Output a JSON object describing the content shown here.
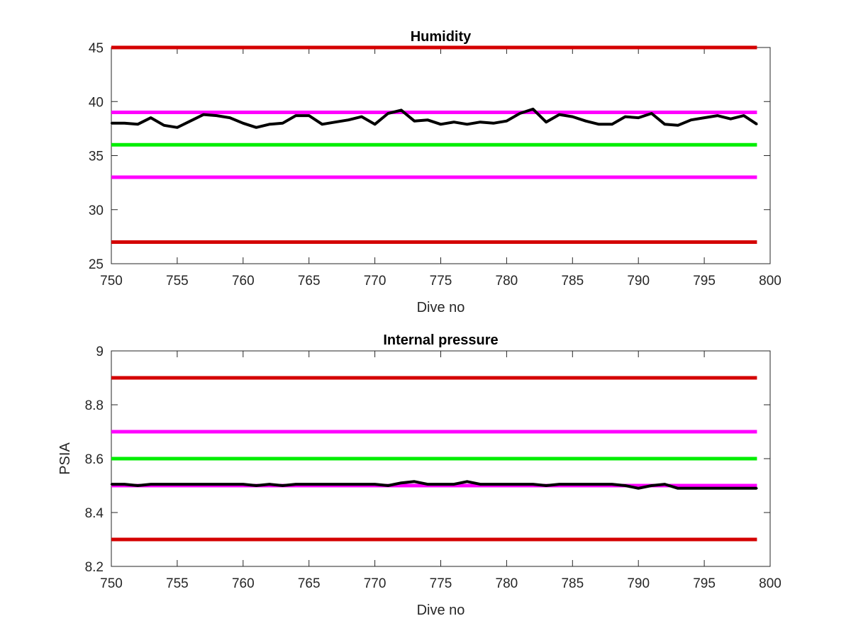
{
  "chart_data": [
    {
      "type": "line",
      "title": "Humidity",
      "xlabel": "Dive no",
      "ylabel": "",
      "xlim": [
        750,
        800
      ],
      "ylim": [
        25,
        45
      ],
      "xticks": [
        750,
        755,
        760,
        765,
        770,
        775,
        780,
        785,
        790,
        795,
        800
      ],
      "yticks": [
        25,
        30,
        35,
        40,
        45
      ],
      "grid": false,
      "limit_lines": [
        {
          "y": 45,
          "color": "#d40000",
          "x": [
            750,
            799
          ]
        },
        {
          "y": 39,
          "color": "#ff00ff",
          "x": [
            750,
            799
          ]
        },
        {
          "y": 36,
          "color": "#00ee00",
          "x": [
            750,
            799
          ]
        },
        {
          "y": 33,
          "color": "#ff00ff",
          "x": [
            750,
            799
          ]
        },
        {
          "y": 27,
          "color": "#d40000",
          "x": [
            750,
            799
          ]
        }
      ],
      "series": [
        {
          "color": "#000000",
          "x": [
            750,
            751,
            752,
            753,
            754,
            755,
            756,
            757,
            758,
            759,
            760,
            761,
            762,
            763,
            764,
            765,
            766,
            767,
            768,
            769,
            770,
            771,
            772,
            773,
            774,
            775,
            776,
            777,
            778,
            779,
            780,
            781,
            782,
            783,
            784,
            785,
            786,
            787,
            788,
            789,
            790,
            791,
            792,
            793,
            794,
            795,
            796,
            797,
            798,
            799
          ],
          "values": [
            38.0,
            38.0,
            37.9,
            38.5,
            37.8,
            37.6,
            38.2,
            38.8,
            38.7,
            38.5,
            38.0,
            37.6,
            37.9,
            38.0,
            38.7,
            38.7,
            37.9,
            38.1,
            38.3,
            38.6,
            37.9,
            38.9,
            39.2,
            38.2,
            38.3,
            37.9,
            38.1,
            37.9,
            38.1,
            38.0,
            38.2,
            38.9,
            39.3,
            38.1,
            38.8,
            38.6,
            38.2,
            37.9,
            37.9,
            38.6,
            38.5,
            38.9,
            37.9,
            37.8,
            38.3,
            38.5,
            38.7,
            38.4,
            38.7,
            37.9
          ]
        }
      ]
    },
    {
      "type": "line",
      "title": "Internal pressure",
      "xlabel": "Dive no",
      "ylabel": "PSIA",
      "xlim": [
        750,
        800
      ],
      "ylim": [
        8.2,
        9.0
      ],
      "xticks": [
        750,
        755,
        760,
        765,
        770,
        775,
        780,
        785,
        790,
        795,
        800
      ],
      "yticks": [
        8.2,
        8.4,
        8.6,
        8.8,
        9
      ],
      "ytick_labels": [
        "8.2",
        "8.4",
        "8.6",
        "8.8",
        "9"
      ],
      "grid": false,
      "limit_lines": [
        {
          "y": 8.9,
          "color": "#d40000",
          "x": [
            750,
            799
          ]
        },
        {
          "y": 8.7,
          "color": "#ff00ff",
          "x": [
            750,
            799
          ]
        },
        {
          "y": 8.6,
          "color": "#00ee00",
          "x": [
            750,
            799
          ]
        },
        {
          "y": 8.5,
          "color": "#ff00ff",
          "x": [
            750,
            799
          ]
        },
        {
          "y": 8.3,
          "color": "#d40000",
          "x": [
            750,
            799
          ]
        }
      ],
      "series": [
        {
          "color": "#000000",
          "x": [
            750,
            751,
            752,
            753,
            754,
            755,
            756,
            757,
            758,
            759,
            760,
            761,
            762,
            763,
            764,
            765,
            766,
            767,
            768,
            769,
            770,
            771,
            772,
            773,
            774,
            775,
            776,
            777,
            778,
            779,
            780,
            781,
            782,
            783,
            784,
            785,
            786,
            787,
            788,
            789,
            790,
            791,
            792,
            793,
            794,
            795,
            796,
            797,
            798,
            799
          ],
          "values": [
            8.505,
            8.505,
            8.5,
            8.505,
            8.505,
            8.505,
            8.505,
            8.505,
            8.505,
            8.505,
            8.505,
            8.5,
            8.505,
            8.5,
            8.505,
            8.505,
            8.505,
            8.505,
            8.505,
            8.505,
            8.505,
            8.5,
            8.51,
            8.515,
            8.505,
            8.505,
            8.505,
            8.515,
            8.505,
            8.505,
            8.505,
            8.505,
            8.505,
            8.5,
            8.505,
            8.505,
            8.505,
            8.505,
            8.505,
            8.5,
            8.49,
            8.5,
            8.505,
            8.49,
            8.49,
            8.49,
            8.49,
            8.49,
            8.49,
            8.49
          ]
        }
      ]
    }
  ]
}
